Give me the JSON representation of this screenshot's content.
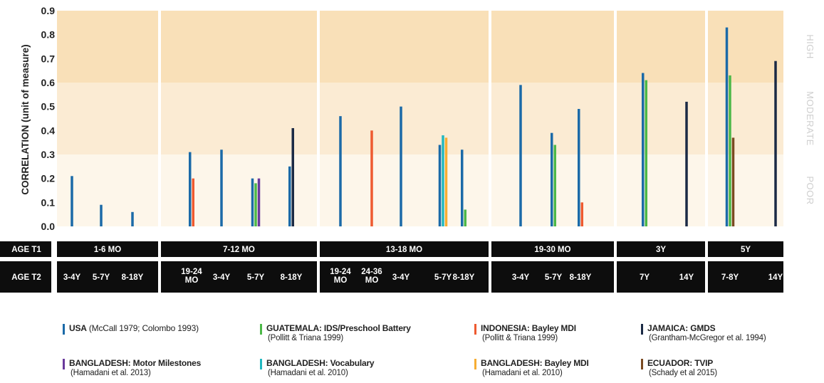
{
  "chart_data": {
    "type": "bar",
    "ylabel": "CORRELATION (unit of measure)",
    "ylim": [
      0,
      0.9
    ],
    "yticks": [
      "0.0",
      "0.1",
      "0.2",
      "0.3",
      "0.4",
      "0.5",
      "0.6",
      "0.7",
      "0.8",
      "0.9"
    ],
    "bands": [
      {
        "label": "POOR",
        "from": 0,
        "to": 0.3,
        "color": "#fdf6ea"
      },
      {
        "label": "MODERATE",
        "from": 0.3,
        "to": 0.6,
        "color": "#fbebd3"
      },
      {
        "label": "HIGH",
        "from": 0.6,
        "to": 0.9,
        "color": "#f9e0b8"
      }
    ],
    "row_labels": {
      "t1": "AGE T1",
      "t2": "AGE T2"
    },
    "series_colors": {
      "usa": "#1b6aa8",
      "guatemala": "#4cb848",
      "indonesia": "#ee5a30",
      "jamaica": "#1b2a45",
      "bangladesh_motor": "#6a3a9c",
      "bangladesh_vocab": "#22b8c0",
      "bangladesh_bayley": "#f7ad33",
      "ecuador": "#7a4a21"
    },
    "groups": [
      {
        "t1": "1-6 MO",
        "subgroups": [
          {
            "t2": "3-4Y",
            "bars": [
              {
                "series": "usa",
                "value": 0.21
              }
            ]
          },
          {
            "t2": "5-7Y",
            "bars": [
              {
                "series": "usa",
                "value": 0.09
              }
            ]
          },
          {
            "t2": "8-18Y",
            "bars": [
              {
                "series": "usa",
                "value": 0.06
              }
            ]
          }
        ]
      },
      {
        "t1": "7-12 MO",
        "subgroups": [
          {
            "t2": "19-24 MO",
            "bars": [
              {
                "series": "usa",
                "value": 0.31
              },
              {
                "series": "indonesia",
                "value": 0.2
              }
            ]
          },
          {
            "t2": "3-4Y",
            "bars": [
              {
                "series": "usa",
                "value": 0.32
              }
            ]
          },
          {
            "t2": "5-7Y",
            "bars": [
              {
                "series": "usa",
                "value": 0.2
              },
              {
                "series": "guatemala",
                "value": 0.18
              },
              {
                "series": "bangladesh_motor",
                "value": 0.2
              }
            ]
          },
          {
            "t2": "8-18Y",
            "bars": [
              {
                "series": "usa",
                "value": 0.25
              },
              {
                "series": "jamaica",
                "value": 0.41
              }
            ]
          }
        ]
      },
      {
        "t1": "13-18 MO",
        "subgroups": [
          {
            "t2": "19-24 MO",
            "bars": [
              {
                "series": "usa",
                "value": 0.46
              }
            ]
          },
          {
            "t2": "24-36 MO",
            "bars": [
              {
                "series": "indonesia",
                "value": 0.4
              }
            ]
          },
          {
            "t2": "3-4Y",
            "bars": [
              {
                "series": "usa",
                "value": 0.5
              }
            ]
          },
          {
            "t2": "5-7Y",
            "bars": [
              {
                "series": "usa",
                "value": 0.34
              },
              {
                "series": "bangladesh_vocab",
                "value": 0.38
              },
              {
                "series": "bangladesh_bayley",
                "value": 0.37
              }
            ]
          },
          {
            "t2": "8-18Y",
            "bars": [
              {
                "series": "usa",
                "value": 0.32
              },
              {
                "series": "guatemala",
                "value": 0.07
              }
            ]
          }
        ]
      },
      {
        "t1": "19-30 MO",
        "subgroups": [
          {
            "t2": "3-4Y",
            "bars": [
              {
                "series": "usa",
                "value": 0.59
              }
            ]
          },
          {
            "t2": "5-7Y",
            "bars": [
              {
                "series": "usa",
                "value": 0.39
              },
              {
                "series": "guatemala",
                "value": 0.34
              }
            ]
          },
          {
            "t2": "8-18Y",
            "bars": [
              {
                "series": "usa",
                "value": 0.49
              },
              {
                "series": "indonesia",
                "value": 0.1
              }
            ]
          }
        ]
      },
      {
        "t1": "3Y",
        "subgroups": [
          {
            "t2": "7Y",
            "bars": [
              {
                "series": "usa",
                "value": 0.64
              },
              {
                "series": "guatemala",
                "value": 0.61
              }
            ]
          },
          {
            "t2": "14Y",
            "bars": [
              {
                "series": "jamaica",
                "value": 0.52
              }
            ]
          }
        ]
      },
      {
        "t1": "5Y",
        "subgroups": [
          {
            "t2": "7-8Y",
            "bars": [
              {
                "series": "usa",
                "value": 0.83
              },
              {
                "series": "guatemala",
                "value": 0.63
              },
              {
                "series": "ecuador",
                "value": 0.37
              }
            ]
          },
          {
            "t2": "14Y",
            "bars": [
              {
                "series": "jamaica",
                "value": 0.69
              }
            ]
          }
        ]
      }
    ]
  },
  "legend": [
    {
      "series": "usa",
      "name": "USA",
      "source": "(McCall 1979; Colombo 1993)",
      "inline": true
    },
    {
      "series": "guatemala",
      "name": "GUATEMALA: IDS/Preschool Battery",
      "source": "(Pollitt & Triana 1999)",
      "inline": false
    },
    {
      "series": "indonesia",
      "name": "INDONESIA: Bayley MDI",
      "source": "(Pollitt & Triana 1999)",
      "inline": false
    },
    {
      "series": "jamaica",
      "name": "JAMAICA: GMDS",
      "source": "(Grantham-McGregor et al. 1994)",
      "inline": false
    },
    {
      "series": "bangladesh_motor",
      "name": "BANGLADESH: Motor Milestones",
      "source": "(Hamadani et al. 2013)",
      "inline": false
    },
    {
      "series": "bangladesh_vocab",
      "name": "BANGLADESH: Vocabulary",
      "source": "(Hamadani et al. 2010)",
      "inline": false
    },
    {
      "series": "bangladesh_bayley",
      "name": "BANGLADESH: Bayley MDI",
      "source": "(Hamadani et al. 2010)",
      "inline": false
    },
    {
      "series": "ecuador",
      "name": "ECUADOR: TVIP",
      "source": "(Schady et al 2015)",
      "inline": false
    }
  ]
}
